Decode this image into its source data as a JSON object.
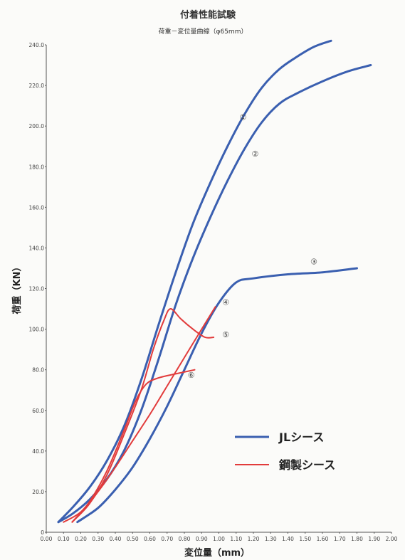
{
  "chart_data": {
    "type": "line",
    "title": "付着性能試験",
    "subtitle": "荷重－変位量曲線（φ65mm）",
    "xlabel": "変位量（mm）",
    "ylabel": "荷重（KN）",
    "xlim": [
      0,
      2.0
    ],
    "ylim": [
      0,
      240
    ],
    "x_ticks": [
      "0.00",
      "0.10",
      "0.20",
      "0.30",
      "0.40",
      "0.50",
      "0.60",
      "0.70",
      "0.80",
      "0.90",
      "1.00",
      "1.10",
      "1.20",
      "1.30",
      "1.40",
      "1.50",
      "1.60",
      "1.70",
      "1.80",
      "1.90",
      "2.00"
    ],
    "y_ticks": [
      "0",
      "20.0",
      "40.0",
      "60.0",
      "80.0",
      "100.0",
      "120.0",
      "140.0",
      "160.0",
      "180.0",
      "200.0",
      "220.0",
      "240.0"
    ],
    "grid": false,
    "legend_position": "bottom-right",
    "legend": [
      {
        "label": "JLシース",
        "color": "#3a5fb0"
      },
      {
        "label": "鋼製シース",
        "color": "#e23b3b"
      }
    ],
    "series": [
      {
        "label": "①",
        "group": "JLシース",
        "color": "#3a5fb0",
        "x": [
          0.07,
          0.15,
          0.25,
          0.35,
          0.45,
          0.55,
          0.65,
          0.75,
          0.85,
          0.95,
          1.05,
          1.15,
          1.25,
          1.35,
          1.45,
          1.55,
          1.65
        ],
        "y": [
          5,
          12,
          22,
          35,
          52,
          75,
          102,
          128,
          152,
          172,
          190,
          206,
          219,
          228,
          234,
          239,
          242
        ]
      },
      {
        "label": "②",
        "group": "JLシース",
        "color": "#3a5fb0",
        "x": [
          0.07,
          0.15,
          0.25,
          0.35,
          0.45,
          0.55,
          0.65,
          0.75,
          0.85,
          0.95,
          1.05,
          1.15,
          1.25,
          1.35,
          1.45,
          1.6,
          1.75,
          1.88
        ],
        "y": [
          5,
          9,
          16,
          26,
          40,
          60,
          85,
          112,
          135,
          155,
          173,
          189,
          202,
          211,
          216,
          222,
          227,
          230
        ]
      },
      {
        "label": "③",
        "group": "JLシース",
        "color": "#3a5fb0",
        "x": [
          0.18,
          0.3,
          0.4,
          0.5,
          0.6,
          0.7,
          0.8,
          0.9,
          1.0,
          1.1,
          1.2,
          1.4,
          1.6,
          1.8
        ],
        "y": [
          5,
          12,
          21,
          32,
          46,
          62,
          80,
          98,
          113,
          123,
          125,
          127,
          128,
          130
        ]
      },
      {
        "label": "④",
        "group": "鋼製シース",
        "color": "#e23b3b",
        "x": [
          0.1,
          0.2,
          0.3,
          0.4,
          0.5,
          0.6,
          0.7,
          0.8,
          0.9,
          0.98
        ],
        "y": [
          5,
          10,
          20,
          32,
          45,
          58,
          72,
          86,
          100,
          111
        ]
      },
      {
        "label": "⑤",
        "group": "鋼製シース",
        "color": "#e23b3b",
        "x": [
          0.15,
          0.25,
          0.35,
          0.45,
          0.55,
          0.62,
          0.68,
          0.72,
          0.78,
          0.85,
          0.92,
          0.97
        ],
        "y": [
          5,
          14,
          28,
          48,
          70,
          90,
          104,
          110,
          105,
          100,
          96,
          96
        ]
      },
      {
        "label": "⑥",
        "group": "鋼製シース",
        "color": "#e23b3b",
        "x": [
          0.15,
          0.25,
          0.35,
          0.45,
          0.52,
          0.58,
          0.65,
          0.75,
          0.86
        ],
        "y": [
          5,
          15,
          30,
          50,
          65,
          73,
          76,
          78,
          80
        ]
      }
    ]
  }
}
